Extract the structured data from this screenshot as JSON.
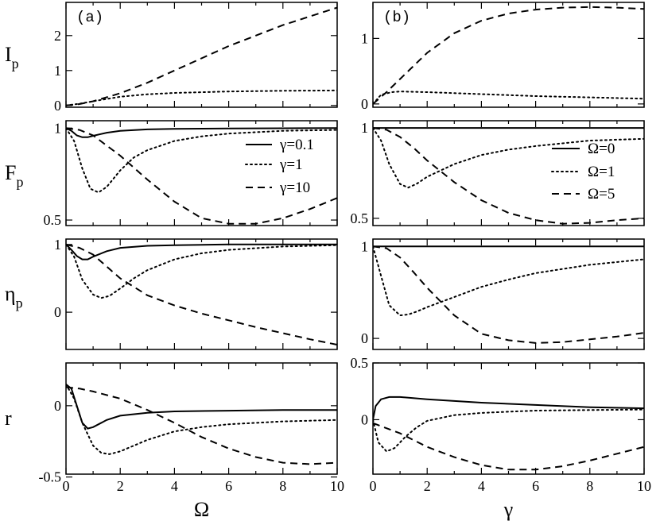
{
  "chart_data": [
    {
      "type": "line",
      "column": "a",
      "row": 0,
      "tag": "(a)",
      "ylabel": "I",
      "ylabel_sub": "p",
      "xlim": [
        0,
        10
      ],
      "ylim": [
        -0.05,
        2.95
      ],
      "yticks": [
        0,
        1,
        2
      ],
      "ytick_labels": [
        "0",
        "1",
        "2"
      ],
      "series": [
        {
          "style": "dotted",
          "x": [
            0,
            0.5,
            1,
            2,
            3,
            4,
            6,
            8,
            10
          ],
          "y": [
            0,
            0.05,
            0.12,
            0.25,
            0.32,
            0.36,
            0.4,
            0.42,
            0.43
          ]
        },
        {
          "style": "dashed",
          "x": [
            0,
            0.5,
            1,
            2,
            3,
            4,
            5,
            6,
            7,
            8,
            9,
            10
          ],
          "y": [
            0,
            0.04,
            0.12,
            0.35,
            0.65,
            1.0,
            1.35,
            1.7,
            2.0,
            2.3,
            2.55,
            2.8
          ]
        }
      ]
    },
    {
      "type": "line",
      "column": "b",
      "row": 0,
      "tag": "(b)",
      "ylabel": "",
      "ylabel_sub": "",
      "xlim": [
        0,
        10
      ],
      "ylim": [
        -0.05,
        1.55
      ],
      "yticks": [
        0,
        1
      ],
      "ytick_labels": [
        "0",
        "1"
      ],
      "series": [
        {
          "style": "dotted",
          "x": [
            0,
            0.3,
            0.7,
            1,
            2,
            4,
            6,
            8,
            10
          ],
          "y": [
            0,
            0.14,
            0.18,
            0.19,
            0.18,
            0.15,
            0.12,
            0.1,
            0.08
          ]
        },
        {
          "style": "dashed",
          "x": [
            0,
            0.5,
            1,
            2,
            3,
            4,
            5,
            6,
            7,
            8,
            9,
            10
          ],
          "y": [
            0,
            0.18,
            0.38,
            0.78,
            1.08,
            1.27,
            1.38,
            1.44,
            1.47,
            1.48,
            1.47,
            1.45
          ]
        }
      ]
    },
    {
      "type": "line",
      "column": "a",
      "row": 1,
      "tag": "",
      "ylabel": "F",
      "ylabel_sub": "p",
      "xlim": [
        0,
        10
      ],
      "ylim": [
        0.47,
        1.04
      ],
      "yticks": [
        0.5,
        1
      ],
      "ytick_labels": [
        "0.5",
        "1"
      ],
      "series": [
        {
          "name": "γ=0.1",
          "style": "solid",
          "x": [
            0,
            0.2,
            0.4,
            0.6,
            0.8,
            1,
            1.5,
            2,
            3,
            4,
            6,
            8,
            10
          ],
          "y": [
            1.0,
            0.985,
            0.96,
            0.95,
            0.95,
            0.958,
            0.975,
            0.985,
            0.993,
            0.996,
            0.998,
            0.999,
            1.0
          ]
        },
        {
          "name": "γ=1",
          "style": "dotted",
          "x": [
            0,
            0.3,
            0.6,
            0.9,
            1.2,
            1.5,
            2,
            2.5,
            3,
            4,
            5,
            6,
            8,
            10
          ],
          "y": [
            1.0,
            0.93,
            0.78,
            0.67,
            0.65,
            0.68,
            0.77,
            0.84,
            0.88,
            0.93,
            0.955,
            0.97,
            0.985,
            0.99
          ]
        },
        {
          "name": "γ=10",
          "style": "dashed",
          "x": [
            0,
            0.5,
            1,
            2,
            3,
            4,
            5,
            6,
            7,
            8,
            9,
            10
          ],
          "y": [
            1.0,
            0.99,
            0.96,
            0.85,
            0.72,
            0.6,
            0.51,
            0.48,
            0.48,
            0.51,
            0.56,
            0.62
          ]
        }
      ],
      "legend": {
        "position": "right",
        "labels": [
          "γ=0.1",
          "γ=1",
          "γ=10"
        ]
      }
    },
    {
      "type": "line",
      "column": "b",
      "row": 1,
      "tag": "",
      "ylabel": "",
      "ylabel_sub": "",
      "xlim": [
        0,
        10
      ],
      "ylim": [
        0.46,
        1.04
      ],
      "yticks": [
        0.5,
        1
      ],
      "ytick_labels": [
        "0.5",
        "1"
      ],
      "series": [
        {
          "name": "Ω=0",
          "style": "solid",
          "x": [
            0,
            10
          ],
          "y": [
            1.0,
            1.0
          ]
        },
        {
          "name": "Ω=1",
          "style": "dotted",
          "x": [
            0,
            0.3,
            0.6,
            1,
            1.3,
            1.6,
            2,
            3,
            4,
            5,
            6,
            8,
            10
          ],
          "y": [
            1.0,
            0.93,
            0.8,
            0.69,
            0.67,
            0.69,
            0.73,
            0.8,
            0.85,
            0.88,
            0.9,
            0.93,
            0.94
          ]
        },
        {
          "name": "Ω=5",
          "style": "dashed",
          "x": [
            0,
            0.5,
            1,
            1.5,
            2,
            3,
            4,
            5,
            6,
            7,
            8,
            9,
            10
          ],
          "y": [
            1.0,
            0.99,
            0.95,
            0.89,
            0.82,
            0.7,
            0.6,
            0.53,
            0.49,
            0.47,
            0.475,
            0.49,
            0.5
          ]
        }
      ],
      "legend": {
        "position": "right",
        "labels": [
          "Ω=0",
          "Ω=1",
          "Ω=5"
        ]
      }
    },
    {
      "type": "line",
      "column": "a",
      "row": 2,
      "tag": "",
      "ylabel": "η",
      "ylabel_sub": "p",
      "xlim": [
        0,
        10
      ],
      "ylim": [
        -0.55,
        1.08
      ],
      "yticks": [
        0,
        1
      ],
      "ytick_labels": [
        "0",
        "1"
      ],
      "series": [
        {
          "style": "solid",
          "x": [
            0,
            0.2,
            0.4,
            0.6,
            0.8,
            1,
            1.5,
            2,
            3,
            4,
            6,
            8,
            10
          ],
          "y": [
            1.0,
            0.92,
            0.83,
            0.78,
            0.78,
            0.82,
            0.9,
            0.95,
            0.98,
            0.99,
            1.0,
            1.0,
            1.0
          ]
        },
        {
          "style": "dotted",
          "x": [
            0,
            0.3,
            0.6,
            1,
            1.3,
            1.6,
            2,
            2.5,
            3,
            4,
            5,
            6,
            8,
            10
          ],
          "y": [
            1.0,
            0.82,
            0.48,
            0.26,
            0.21,
            0.24,
            0.35,
            0.5,
            0.62,
            0.78,
            0.87,
            0.92,
            0.97,
            0.99
          ]
        },
        {
          "style": "dashed",
          "x": [
            0,
            0.5,
            1,
            2,
            3,
            4,
            5,
            6,
            7,
            8,
            9,
            10
          ],
          "y": [
            1.0,
            0.95,
            0.85,
            0.5,
            0.25,
            0.1,
            -0.02,
            -0.12,
            -0.22,
            -0.31,
            -0.4,
            -0.48
          ]
        }
      ]
    },
    {
      "type": "line",
      "column": "b",
      "row": 2,
      "tag": "",
      "ylabel": "",
      "ylabel_sub": "",
      "xlim": [
        0,
        10
      ],
      "ylim": [
        -0.12,
        1.08
      ],
      "yticks": [
        0,
        1
      ],
      "ytick_labels": [
        "0",
        "1"
      ],
      "series": [
        {
          "style": "solid",
          "x": [
            0,
            10
          ],
          "y": [
            1.0,
            1.0
          ]
        },
        {
          "style": "dotted",
          "x": [
            0,
            0.3,
            0.6,
            1,
            1.3,
            1.6,
            2,
            3,
            4,
            5,
            6,
            8,
            10
          ],
          "y": [
            1.0,
            0.68,
            0.36,
            0.25,
            0.26,
            0.29,
            0.34,
            0.45,
            0.56,
            0.64,
            0.71,
            0.8,
            0.86
          ]
        },
        {
          "style": "dashed",
          "x": [
            0,
            0.5,
            1,
            1.5,
            2,
            3,
            4,
            5,
            6,
            7,
            8,
            9,
            10
          ],
          "y": [
            1.0,
            0.98,
            0.88,
            0.72,
            0.55,
            0.25,
            0.05,
            -0.02,
            -0.05,
            -0.04,
            -0.01,
            0.02,
            0.06
          ]
        }
      ]
    },
    {
      "type": "line",
      "column": "a",
      "row": 3,
      "tag": "",
      "ylabel": "r",
      "ylabel_sub": "",
      "xlim": [
        0,
        10
      ],
      "ylim": [
        -0.48,
        0.3
      ],
      "yticks": [
        -0.5,
        0
      ],
      "ytick_labels": [
        "-0.5",
        "0"
      ],
      "xticks": [
        0,
        2,
        4,
        6,
        8,
        10
      ],
      "xtick_labels": [
        "0",
        "2",
        "4",
        "6",
        "8",
        "10"
      ],
      "xlabel": "Ω",
      "series": [
        {
          "style": "solid",
          "x": [
            0,
            0.2,
            0.4,
            0.6,
            0.8,
            1,
            1.5,
            2,
            3,
            4,
            6,
            8,
            10
          ],
          "y": [
            0.15,
            0.12,
            0.0,
            -0.12,
            -0.16,
            -0.15,
            -0.1,
            -0.07,
            -0.05,
            -0.04,
            -0.035,
            -0.03,
            -0.03
          ]
        },
        {
          "style": "dotted",
          "x": [
            0,
            0.3,
            0.6,
            1,
            1.3,
            1.6,
            2,
            2.5,
            3,
            4,
            5,
            6,
            8,
            10
          ],
          "y": [
            0.15,
            0.05,
            -0.12,
            -0.28,
            -0.33,
            -0.34,
            -0.32,
            -0.28,
            -0.24,
            -0.18,
            -0.15,
            -0.13,
            -0.11,
            -0.1
          ]
        },
        {
          "style": "dashed",
          "x": [
            0,
            0.5,
            1,
            2,
            3,
            4,
            5,
            6,
            7,
            8,
            9,
            10
          ],
          "y": [
            0.13,
            0.12,
            0.1,
            0.05,
            -0.03,
            -0.12,
            -0.22,
            -0.3,
            -0.36,
            -0.4,
            -0.41,
            -0.4
          ]
        }
      ]
    },
    {
      "type": "line",
      "column": "b",
      "row": 3,
      "tag": "",
      "ylabel": "",
      "ylabel_sub": "",
      "xlim": [
        0,
        10
      ],
      "ylim": [
        -0.48,
        0.5
      ],
      "yticks": [
        0,
        0.5
      ],
      "ytick_labels": [
        "0",
        "0.5"
      ],
      "xticks": [
        0,
        2,
        4,
        6,
        8,
        10
      ],
      "xtick_labels": [
        "0",
        "2",
        "4",
        "6",
        "8",
        "10"
      ],
      "xlabel": "γ",
      "series": [
        {
          "style": "solid",
          "x": [
            0,
            0.1,
            0.3,
            0.6,
            1,
            2,
            4,
            6,
            8,
            10
          ],
          "y": [
            0.0,
            0.12,
            0.18,
            0.2,
            0.2,
            0.18,
            0.15,
            0.13,
            0.11,
            0.1
          ]
        },
        {
          "style": "dotted",
          "x": [
            0,
            0.2,
            0.5,
            0.8,
            1.2,
            1.6,
            2,
            3,
            4,
            5,
            6,
            8,
            10
          ],
          "y": [
            0.0,
            -0.2,
            -0.28,
            -0.25,
            -0.15,
            -0.07,
            -0.01,
            0.04,
            0.06,
            0.07,
            0.08,
            0.085,
            0.09
          ]
        },
        {
          "style": "dashed",
          "x": [
            0,
            1,
            2,
            3,
            4,
            5,
            6,
            7,
            8,
            9,
            10
          ],
          "y": [
            -0.03,
            -0.12,
            -0.24,
            -0.33,
            -0.4,
            -0.44,
            -0.44,
            -0.41,
            -0.36,
            -0.3,
            -0.24
          ]
        }
      ]
    }
  ]
}
